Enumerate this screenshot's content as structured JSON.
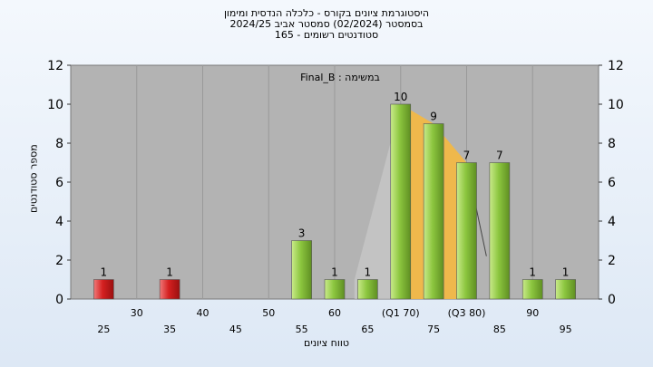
{
  "chart_data": {
    "type": "bar",
    "title_lines": [
      "היסטוגרמת ציונים בקורס - כלכלה הנדסית ומימון",
      "בסמסטר  (02/2024)  סמסטר אביב 2024/25",
      "165 - סטודנטים רשומים"
    ],
    "subtitle": "Final_B : במשימה",
    "xlabel": "טווח ציונים",
    "ylabel": "מספר סטודנטים",
    "ylim": [
      0,
      12
    ],
    "yticks": [
      0,
      2,
      4,
      6,
      8,
      10,
      12
    ],
    "x_ticks_top": [
      "30",
      "40",
      "50",
      "60",
      "(Q1 70)",
      "(Q3 80)",
      "90"
    ],
    "x_ticks_bottom": [
      "25",
      "35",
      "45",
      "55",
      "65",
      "75",
      "85",
      "95"
    ],
    "categories": [
      25,
      30,
      35,
      40,
      45,
      50,
      55,
      60,
      65,
      70,
      75,
      80,
      85,
      90,
      95
    ],
    "values": [
      1,
      0,
      1,
      0,
      0,
      0,
      3,
      1,
      1,
      10,
      9,
      7,
      7,
      1,
      1
    ],
    "bar_labels": [
      "1",
      "",
      "1",
      "",
      "",
      "",
      "3",
      "1",
      "1",
      "10",
      "9",
      "7",
      "7",
      "1",
      "1"
    ],
    "quartile_range": [
      70,
      80
    ],
    "colors": {
      "fail": "#d42020",
      "pass": "#8cc63f",
      "quartile": "#f5b840",
      "plot_bg": "#b3b3b3",
      "grid": "#999999"
    },
    "fail_below": 55
  }
}
